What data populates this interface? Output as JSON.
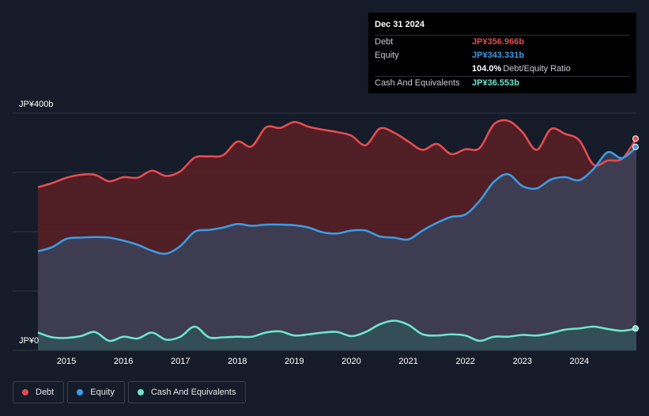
{
  "tooltip": {
    "date": "Dec 31 2024",
    "rows": [
      {
        "label": "Debt",
        "value": "JP¥356.966b",
        "color": "#e64b4e"
      },
      {
        "label": "Equity",
        "value": "JP¥343.331b",
        "color": "#3b9be6"
      },
      {
        "label": "",
        "value": "104.0%",
        "suffix": "Debt/Equity Ratio",
        "color": "#ffffff"
      },
      {
        "label": "Cash And Equivalents",
        "value": "JP¥36.553b",
        "color": "#6fe3cf"
      }
    ]
  },
  "legend": [
    {
      "label": "Debt",
      "color": "#e64b4e"
    },
    {
      "label": "Equity",
      "color": "#3b9be6"
    },
    {
      "label": "Cash And Equivalents",
      "color": "#6fe3cf"
    }
  ],
  "chart_data": {
    "type": "area",
    "ylim": [
      0,
      400
    ],
    "y_tick_labels": [
      "JP¥400b",
      "JP¥0"
    ],
    "x_ticks": [
      2015,
      2016,
      2017,
      2018,
      2019,
      2020,
      2021,
      2022,
      2023,
      2024
    ],
    "xlim": [
      2014.5,
      2025.0
    ],
    "grid": true,
    "legend_position": "bottom-left",
    "series": [
      {
        "name": "Debt",
        "color": "#e64b4e",
        "x": [
          2014.5,
          2014.75,
          2015.0,
          2015.25,
          2015.5,
          2015.75,
          2016.0,
          2016.25,
          2016.5,
          2016.75,
          2017.0,
          2017.25,
          2017.5,
          2017.75,
          2018.0,
          2018.25,
          2018.5,
          2018.75,
          2019.0,
          2019.25,
          2019.5,
          2019.75,
          2020.0,
          2020.25,
          2020.5,
          2020.75,
          2021.0,
          2021.25,
          2021.5,
          2021.75,
          2022.0,
          2022.25,
          2022.5,
          2022.75,
          2023.0,
          2023.25,
          2023.5,
          2023.75,
          2024.0,
          2024.25,
          2024.5,
          2024.75,
          2025.0
        ],
        "values": [
          275,
          282,
          291,
          296,
          296,
          285,
          292,
          291,
          303,
          294,
          302,
          325,
          327,
          329,
          352,
          344,
          376,
          375,
          385,
          377,
          372,
          368,
          362,
          346,
          374,
          367,
          352,
          338,
          348,
          331,
          339,
          341,
          381,
          387,
          368,
          338,
          373,
          365,
          354,
          313,
          320,
          323,
          357
        ]
      },
      {
        "name": "Equity",
        "color": "#3b9be6",
        "x": [
          2014.5,
          2014.75,
          2015.0,
          2015.25,
          2015.5,
          2015.75,
          2016.0,
          2016.25,
          2016.5,
          2016.75,
          2017.0,
          2017.25,
          2017.5,
          2017.75,
          2018.0,
          2018.25,
          2018.5,
          2018.75,
          2019.0,
          2019.25,
          2019.5,
          2019.75,
          2020.0,
          2020.25,
          2020.5,
          2020.75,
          2021.0,
          2021.25,
          2021.5,
          2021.75,
          2022.0,
          2022.25,
          2022.5,
          2022.75,
          2023.0,
          2023.25,
          2023.5,
          2023.75,
          2024.0,
          2024.25,
          2024.5,
          2024.75,
          2025.0
        ],
        "values": [
          167,
          174,
          188,
          190,
          191,
          190,
          185,
          178,
          168,
          163,
          176,
          200,
          203,
          207,
          213,
          210,
          212,
          212,
          211,
          207,
          199,
          197,
          202,
          202,
          192,
          190,
          187,
          202,
          215,
          225,
          229,
          252,
          284,
          297,
          277,
          273,
          288,
          292,
          287,
          306,
          334,
          324,
          343
        ]
      },
      {
        "name": "Cash And Equivalents",
        "color": "#6fe3cf",
        "x": [
          2014.5,
          2014.75,
          2015.0,
          2015.25,
          2015.5,
          2015.75,
          2016.0,
          2016.25,
          2016.5,
          2016.75,
          2017.0,
          2017.25,
          2017.5,
          2017.75,
          2018.0,
          2018.25,
          2018.5,
          2018.75,
          2019.0,
          2019.25,
          2019.5,
          2019.75,
          2020.0,
          2020.25,
          2020.5,
          2020.75,
          2021.0,
          2021.25,
          2021.5,
          2021.75,
          2022.0,
          2022.25,
          2022.5,
          2022.75,
          2023.0,
          2023.25,
          2023.5,
          2023.75,
          2024.0,
          2024.25,
          2024.5,
          2024.75,
          2025.0
        ],
        "values": [
          30,
          22,
          21,
          24,
          31,
          16,
          23,
          20,
          30,
          18,
          23,
          40,
          22,
          22,
          23,
          23,
          30,
          32,
          25,
          27,
          30,
          31,
          24,
          31,
          44,
          50,
          43,
          27,
          25,
          27,
          25,
          16,
          23,
          23,
          26,
          25,
          29,
          35,
          37,
          40,
          36,
          33,
          37
        ]
      }
    ]
  }
}
